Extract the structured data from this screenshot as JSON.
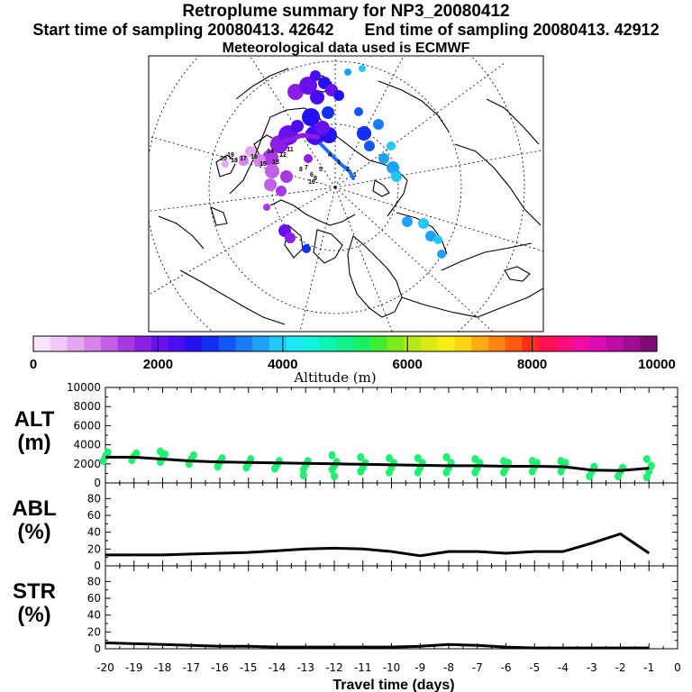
{
  "header": {
    "title": "Retroplume summary for NP3_20080412",
    "start_label": "Start time of sampling 20080413. 42642",
    "end_label": "End time of sampling 20080413. 42912",
    "met_label": "Meteorological data used is ECMWF"
  },
  "map": {
    "day_labels": [
      "1",
      "2",
      "3",
      "4",
      "5",
      "6",
      "7",
      "8",
      "9",
      "10",
      "11",
      "12",
      "13",
      "14",
      "15",
      "16",
      "17",
      "18",
      "19",
      "20"
    ],
    "track_color": "#1a6fff",
    "land_color": "#000000"
  },
  "colorbar": {
    "title": "Altitude (m)",
    "ticks": [
      "0",
      "2000",
      "4000",
      "6000",
      "8000",
      "10000"
    ],
    "range": [
      0,
      10000
    ],
    "colors": [
      "#f7e3fb",
      "#efc9f6",
      "#e4a8f0",
      "#d784ea",
      "#c25fe4",
      "#a838e2",
      "#8d1ee6",
      "#6a10ec",
      "#4a0cf0",
      "#2410f2",
      "#1230f4",
      "#1456f5",
      "#197cf7",
      "#1ea2f8",
      "#21c8f8",
      "#1ce8f4",
      "#10f2dc",
      "#0ef2b2",
      "#10f28a",
      "#18f064",
      "#40ee2e",
      "#7cec1a",
      "#b4ea16",
      "#dcea14",
      "#f6ee12",
      "#ffd412",
      "#ffac12",
      "#ff8412",
      "#ff5a12",
      "#ff2c1a",
      "#ff1050",
      "#ff0c7c",
      "#f20aa4",
      "#dc0ab4",
      "#c00aa6",
      "#a00c92",
      "#7e0c78"
    ]
  },
  "chart_data": [
    {
      "type": "line",
      "name": "ALT",
      "panel_label": [
        "ALT",
        "(m)"
      ],
      "xlabel": "Travel time (days)",
      "x_ticks": [
        "-20",
        "-19",
        "-18",
        "-17",
        "-16",
        "-15",
        "-14",
        "-13",
        "-12",
        "-11",
        "-10",
        "-9",
        "-8",
        "-7",
        "-6",
        "-5",
        "-4",
        "-3",
        "-2",
        "-1",
        "0"
      ],
      "xlim": [
        -20,
        0
      ],
      "ylim": [
        0,
        10000
      ],
      "y_ticks": [
        "0",
        "2000",
        "4000",
        "6000",
        "8000",
        "10000"
      ],
      "x": [
        -20,
        -19,
        -18,
        -17,
        -16,
        -15,
        -14,
        -13,
        -12,
        -11,
        -10,
        -9,
        -8,
        -7,
        -6,
        -5,
        -4,
        -3,
        -2,
        -1
      ],
      "values": [
        2700,
        2700,
        2500,
        2300,
        2200,
        2150,
        2100,
        2050,
        2000,
        1950,
        1900,
        1850,
        1800,
        1800,
        1750,
        1750,
        1700,
        1350,
        1300,
        1550
      ],
      "line_color": "#000000",
      "cluster_color": "#1ef070",
      "clusters": [
        {
          "x": -20,
          "alt": [
            2300,
            2800,
            3200
          ]
        },
        {
          "x": -19,
          "alt": [
            2400,
            2800,
            3100
          ]
        },
        {
          "x": -18,
          "alt": [
            2200,
            2600,
            3000,
            3300
          ]
        },
        {
          "x": -17,
          "alt": [
            2000,
            2500,
            2900
          ]
        },
        {
          "x": -16,
          "alt": [
            1700,
            2200,
            2600
          ]
        },
        {
          "x": -15,
          "alt": [
            1600,
            2000,
            2500
          ]
        },
        {
          "x": -14,
          "alt": [
            1500,
            1900,
            2300
          ]
        },
        {
          "x": -13,
          "alt": [
            1400,
            1900,
            2300,
            800
          ]
        },
        {
          "x": -12,
          "alt": [
            1400,
            1800,
            2200,
            2900,
            700
          ]
        },
        {
          "x": -11,
          "alt": [
            1200,
            1600,
            2100,
            2700
          ]
        },
        {
          "x": -10,
          "alt": [
            1100,
            1600,
            2100,
            2600
          ]
        },
        {
          "x": -9,
          "alt": [
            1100,
            1600,
            2100,
            2600
          ]
        },
        {
          "x": -8,
          "alt": [
            1100,
            1600,
            2100,
            2700
          ]
        },
        {
          "x": -7,
          "alt": [
            1100,
            1600,
            2100,
            2500
          ]
        },
        {
          "x": -6,
          "alt": [
            1100,
            1600,
            2100,
            2300
          ]
        },
        {
          "x": -5,
          "alt": [
            1200,
            1700,
            2100,
            2300
          ]
        },
        {
          "x": -4,
          "alt": [
            1200,
            1700,
            2100,
            2300
          ]
        },
        {
          "x": -3,
          "alt": [
            700,
            1200,
            1700
          ]
        },
        {
          "x": -2,
          "alt": [
            700,
            1200,
            1600
          ]
        },
        {
          "x": -1,
          "alt": [
            600,
            1200,
            1800,
            2500
          ]
        }
      ]
    },
    {
      "type": "line",
      "name": "ABL",
      "panel_label": [
        "ABL",
        "(%)"
      ],
      "xlim": [
        -20,
        0
      ],
      "ylim": [
        0,
        90
      ],
      "y_ticks": [
        "0",
        "20",
        "40",
        "60",
        "80"
      ],
      "x": [
        -20,
        -19,
        -18,
        -17,
        -16,
        -15,
        -14,
        -13,
        -12,
        -11,
        -10,
        -9,
        -8,
        -7,
        -6,
        -5,
        -4,
        -3,
        -2,
        -1
      ],
      "values": [
        13,
        13,
        13,
        14,
        15,
        16,
        18,
        20,
        21,
        20,
        17,
        12,
        17,
        17,
        15,
        17,
        17,
        27,
        38,
        15
      ],
      "line_color": "#000000"
    },
    {
      "type": "line",
      "name": "STR",
      "panel_label": [
        "STR",
        "(%)"
      ],
      "xlim": [
        -20,
        0
      ],
      "ylim": [
        0,
        90
      ],
      "y_ticks": [
        "0",
        "20",
        "40",
        "60",
        "80"
      ],
      "x": [
        -20,
        -19,
        -18,
        -17,
        -16,
        -15,
        -14,
        -13,
        -12,
        -11,
        -10,
        -9,
        -8,
        -7,
        -6,
        -5,
        -4,
        -3,
        -2,
        -1
      ],
      "values": [
        7,
        6,
        5,
        4,
        3,
        3,
        2,
        2,
        2,
        2,
        2,
        3,
        5,
        4,
        2,
        1,
        1,
        1,
        1,
        1
      ],
      "line_color": "#000000"
    }
  ]
}
